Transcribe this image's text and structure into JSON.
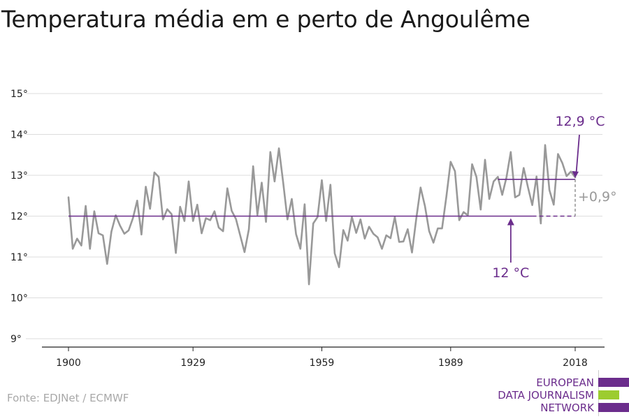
{
  "title": "Temperatura média em e perto de Angoulême",
  "source": "Fonte: EDJNet / ECMWF",
  "logo": {
    "lines": [
      "EUROPEAN",
      "DATA JOURNALISM",
      "NETWORK"
    ],
    "colors": {
      "purple": "#6b2d8c",
      "green": "#9ccc2f"
    }
  },
  "colors": {
    "series": "#999999",
    "baseline": "#6b2d8c",
    "recent": "#6b2d8c",
    "diff": "#999999"
  },
  "chart_data": {
    "type": "line",
    "title": "Temperatura média em e perto de Angoulême",
    "xlabel": "",
    "ylabel": "",
    "xlim": [
      1900,
      2018
    ],
    "ylim": [
      9,
      15
    ],
    "x_ticks": [
      1900,
      1929,
      1959,
      1989,
      2018
    ],
    "x_tick_labels": [
      "1900",
      "1929",
      "1959",
      "1989",
      "2018"
    ],
    "y_ticks": [
      9,
      10,
      11,
      12,
      13,
      14,
      15
    ],
    "y_tick_labels": [
      "9°",
      "10°",
      "11°",
      "12°",
      "13°",
      "14°",
      "15°"
    ],
    "grid": "horizontal",
    "series": [
      {
        "x": [
          1900,
          1901,
          1902,
          1903,
          1904,
          1905,
          1906,
          1907,
          1908,
          1909,
          1910,
          1911,
          1912,
          1913,
          1914,
          1915,
          1916,
          1917,
          1918,
          1919,
          1920,
          1921,
          1922,
          1923,
          1924,
          1925,
          1926,
          1927,
          1928,
          1929,
          1930,
          1931,
          1932,
          1933,
          1934,
          1935,
          1936,
          1937,
          1938,
          1939,
          1940,
          1941,
          1942,
          1943,
          1944,
          1945,
          1946,
          1947,
          1948,
          1949,
          1950,
          1951,
          1952,
          1953,
          1954,
          1955,
          1956,
          1957,
          1958,
          1959,
          1960,
          1961,
          1962,
          1963,
          1964,
          1965,
          1966,
          1967,
          1968,
          1969,
          1970,
          1971,
          1972,
          1973,
          1974,
          1975,
          1976,
          1977,
          1978,
          1979,
          1980,
          1981,
          1982,
          1983,
          1984,
          1985,
          1986,
          1987,
          1988,
          1989,
          1990,
          1991,
          1992,
          1993,
          1994,
          1995,
          1996,
          1997,
          1998,
          1999,
          2000,
          2001,
          2002,
          2003,
          2004,
          2005,
          2006,
          2007,
          2008,
          2009,
          2010,
          2011,
          2012,
          2013,
          2014,
          2015,
          2016,
          2017,
          2018
        ],
        "values": [
          12.46,
          11.2,
          11.45,
          11.28,
          12.25,
          11.2,
          12.12,
          11.58,
          11.53,
          10.83,
          11.62,
          12.02,
          11.77,
          11.57,
          11.65,
          11.95,
          12.38,
          11.55,
          12.72,
          12.18,
          13.07,
          12.96,
          11.92,
          12.17,
          12.05,
          11.1,
          12.23,
          11.88,
          12.85,
          11.88,
          12.28,
          11.58,
          11.95,
          11.9,
          12.12,
          11.72,
          11.63,
          12.68,
          12.13,
          11.93,
          11.52,
          11.12,
          11.68,
          13.22,
          12.03,
          12.82,
          11.86,
          13.57,
          12.85,
          13.66,
          12.82,
          11.92,
          12.42,
          11.56,
          11.2,
          12.29,
          10.33,
          11.82,
          11.98,
          12.88,
          11.88,
          12.77,
          11.09,
          10.75,
          11.66,
          11.4,
          11.98,
          11.59,
          11.92,
          11.45,
          11.74,
          11.57,
          11.48,
          11.2,
          11.53,
          11.46,
          11.98,
          11.37,
          11.38,
          11.68,
          11.11,
          11.95,
          12.7,
          12.25,
          11.63,
          11.35,
          11.7,
          11.7,
          12.48,
          13.33,
          13.1,
          11.9,
          12.1,
          12.02,
          13.27,
          12.96,
          12.16,
          13.38,
          12.42,
          12.85,
          12.96,
          12.52,
          12.95,
          13.57,
          12.46,
          12.52,
          13.18,
          12.71,
          12.27,
          12.97,
          11.82,
          13.74,
          12.64,
          12.28,
          13.52,
          13.3,
          12.98,
          13.09,
          12.95
        ]
      }
    ],
    "reference_lines": [
      {
        "label": "12 °C",
        "value": 12.0,
        "x_start": 1900,
        "x_end": 2018,
        "solid_end": 2008
      },
      {
        "label": "12,9 °C",
        "value": 12.9,
        "x_start": 2000,
        "x_end": 2018
      }
    ],
    "difference": {
      "label": "+0,9°",
      "from": 12.0,
      "to": 12.9,
      "x": 2018
    },
    "annotations": [
      {
        "text": "12,9 °C",
        "target_x": 2018,
        "target_y": 12.9
      },
      {
        "text": "12 °C",
        "target_x": 2003,
        "target_y": 12.0
      }
    ]
  }
}
